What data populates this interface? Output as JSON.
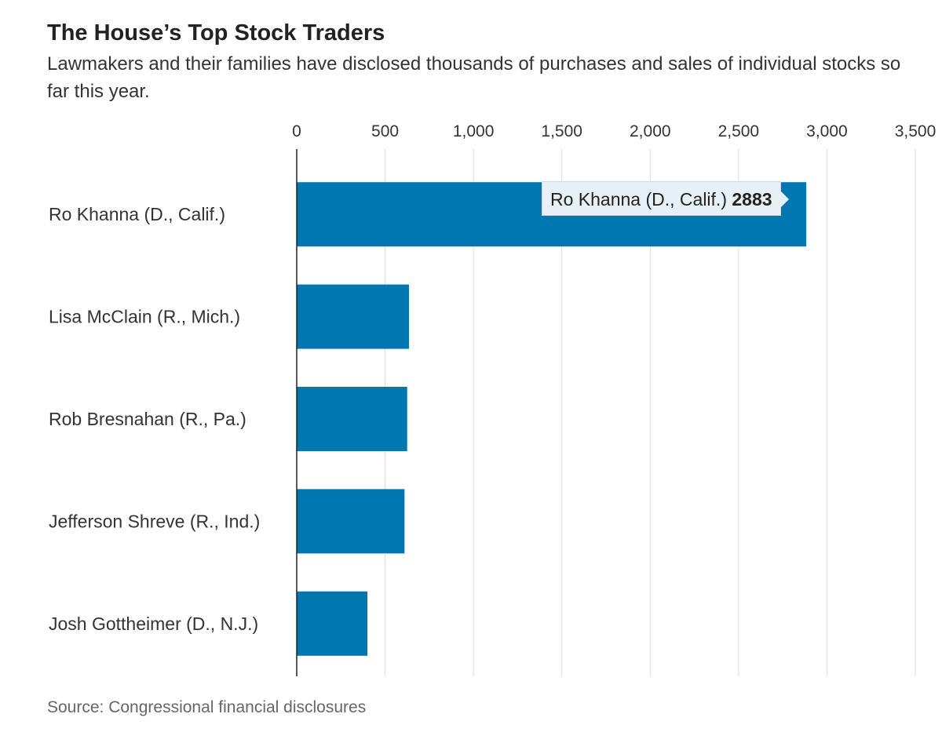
{
  "title": "The House’s Top Stock Traders",
  "subtitle": "Lawmakers and their families have disclosed thousands of purchases and sales of individual stocks so far this year.",
  "source": "Source: Congressional financial disclosures",
  "tooltip": {
    "label": "Ro Khanna (D., Calif.)",
    "value": "2883"
  },
  "colors": {
    "bar": "#0077b0",
    "grid": "#dddddd",
    "axis": "#222222"
  },
  "chart_data": {
    "type": "bar",
    "orientation": "horizontal",
    "categories": [
      "Ro Khanna (D., Calif.)",
      "Lisa McClain (R., Mich.)",
      "Rob Bresnahan (R., Pa.)",
      "Jefferson Shreve (R., Ind.)",
      "Josh Gottheimer (D., N.J.)"
    ],
    "values": [
      2883,
      635,
      625,
      610,
      400
    ],
    "xlim": [
      0,
      3500
    ],
    "ticks": [
      0,
      500,
      1000,
      1500,
      2000,
      2500,
      3000,
      3500
    ],
    "tick_labels": [
      "0",
      "500",
      "1,000",
      "1,500",
      "2,000",
      "2,500",
      "3,000",
      "3,500"
    ],
    "grid": true,
    "axis_position": "top"
  }
}
